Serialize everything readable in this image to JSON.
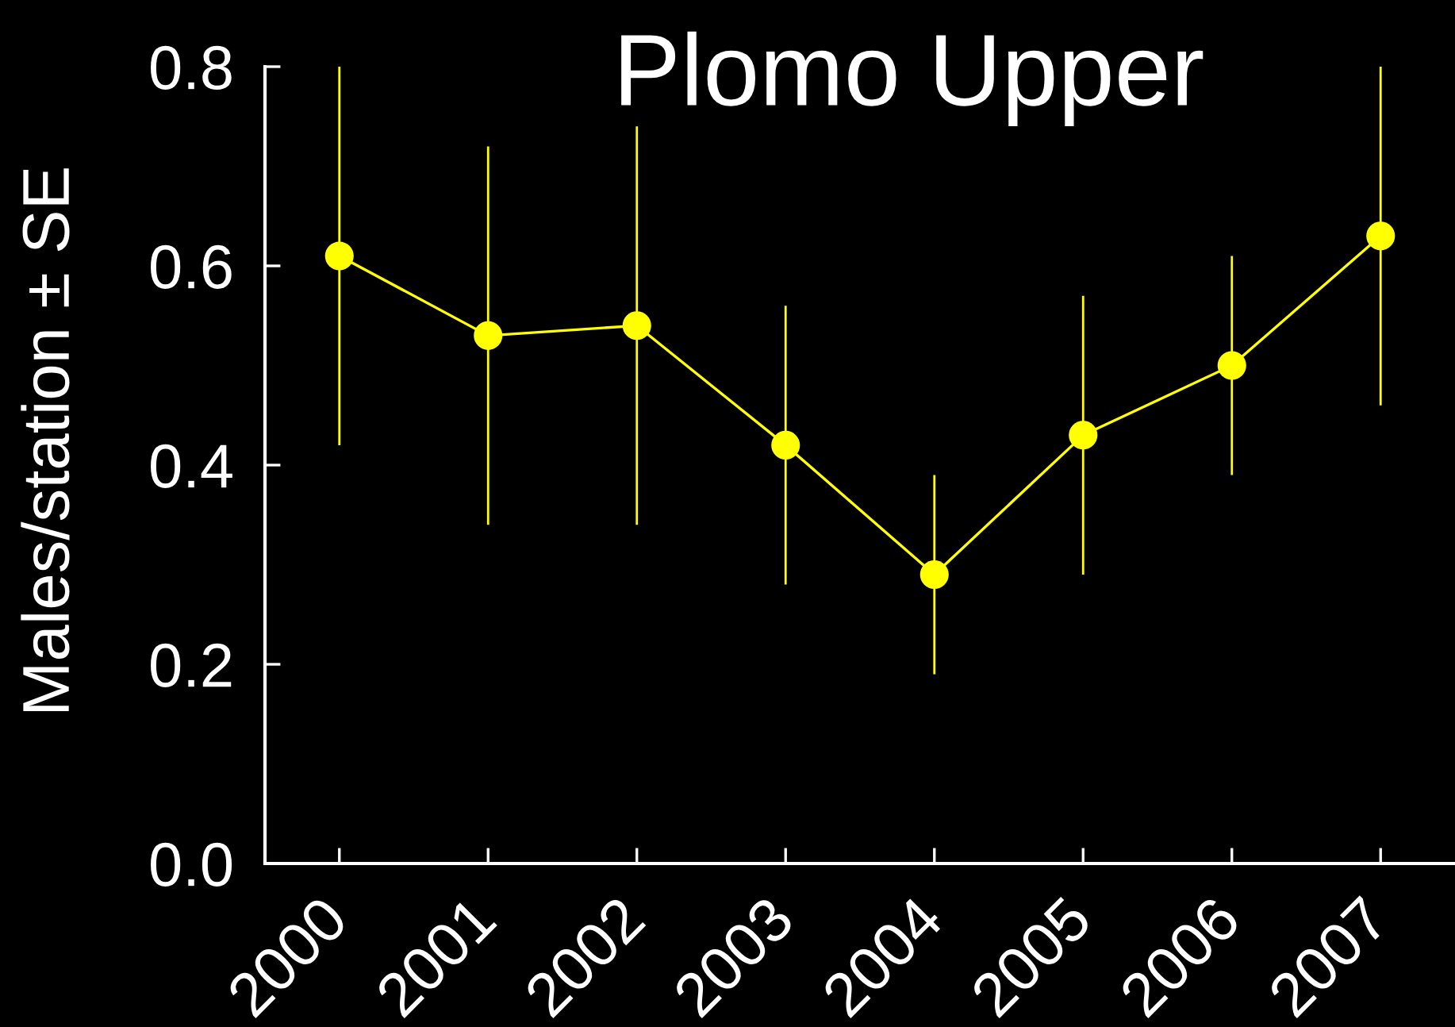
{
  "chart_data": {
    "type": "line",
    "title": "Plomo Upper",
    "ylabel": "Males/station ± SE",
    "categories": [
      "2000",
      "2001",
      "2002",
      "2003",
      "2004",
      "2005",
      "2006",
      "2007"
    ],
    "values": [
      0.61,
      0.53,
      0.54,
      0.42,
      0.29,
      0.43,
      0.5,
      0.63
    ],
    "errors": [
      0.19,
      0.19,
      0.2,
      0.14,
      0.1,
      0.14,
      0.11,
      0.17
    ],
    "color": "#ffff00",
    "marker": "circle",
    "ylim": [
      0,
      0.8
    ],
    "yticks": [
      {
        "value": 0,
        "label": "0.0"
      },
      0.2,
      0.4,
      0.6,
      0.8
    ]
  }
}
